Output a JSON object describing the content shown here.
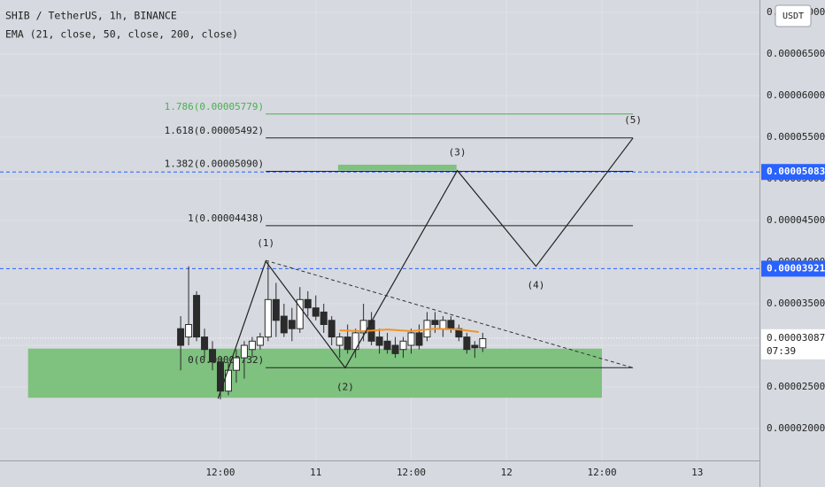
{
  "chart_data": {
    "type": "candlestick",
    "title": "SHIB / TetherUS, 1h, BINANCE",
    "subtitle": "EMA (21, close, 50, close, 200, close)",
    "currency": "USDT",
    "xlim": [
      -15.73,
      79.82
    ],
    "ylim": [
      1.617e-05,
      7.149e-05
    ],
    "xticks": [
      {
        "value": 12,
        "label": "12:00"
      },
      {
        "value": 24,
        "label": "11"
      },
      {
        "value": 36,
        "label": "12:00"
      },
      {
        "value": 48,
        "label": "12"
      },
      {
        "value": 60,
        "label": "12:00"
      },
      {
        "value": 72,
        "label": "13"
      }
    ],
    "yticks": [
      {
        "value": 2e-05,
        "label": "0.00002000"
      },
      {
        "value": 2.5e-05,
        "label": "0.00002500"
      },
      {
        "value": 3e-05,
        "label": "0.00003000"
      },
      {
        "value": 3.5e-05,
        "label": "0.00003500"
      },
      {
        "value": 4e-05,
        "label": "0.00004000"
      },
      {
        "value": 4.5e-05,
        "label": "0.00004500"
      },
      {
        "value": 5e-05,
        "label": "0.00005000"
      },
      {
        "value": 5.5e-05,
        "label": "0.00005500"
      },
      {
        "value": 6e-05,
        "label": "0.00006000"
      },
      {
        "value": 6.5e-05,
        "label": "0.00006500"
      },
      {
        "value": 7e-05,
        "label": "0.00007000"
      }
    ],
    "grid": true,
    "up_color": "#ffffff",
    "down_color": "#2b2b2b",
    "x": [
      7,
      8,
      9,
      10,
      11,
      12,
      13,
      14,
      15,
      16,
      17,
      18,
      19,
      20,
      21,
      22,
      23,
      24,
      25,
      26,
      27,
      28,
      29,
      30,
      31,
      32,
      33,
      34,
      35,
      36,
      37,
      38,
      39,
      40,
      41,
      42,
      43,
      44,
      45
    ],
    "open": [
      3.2e-05,
      3.1e-05,
      3.6e-05,
      3.1e-05,
      2.95e-05,
      2.8e-05,
      2.45e-05,
      2.7e-05,
      2.85e-05,
      2.95e-05,
      3e-05,
      3.1e-05,
      3.55e-05,
      3.35e-05,
      3.3e-05,
      3.2e-05,
      3.55e-05,
      3.45e-05,
      3.4e-05,
      3.3e-05,
      3e-05,
      3.1e-05,
      2.95e-05,
      3.15e-05,
      3.3e-05,
      3.1e-05,
      3.05e-05,
      3e-05,
      2.95e-05,
      3e-05,
      3.15e-05,
      3.1e-05,
      3.3e-05,
      3.2e-05,
      3.3e-05,
      3.2e-05,
      3.1e-05,
      3e-05,
      2.97e-05
    ],
    "high": [
      3.35e-05,
      3.95e-05,
      3.65e-05,
      3.2e-05,
      3.05e-05,
      2.85e-05,
      2.8e-05,
      2.95e-05,
      3.05e-05,
      3.1e-05,
      3.15e-05,
      4e-05,
      3.75e-05,
      3.5e-05,
      3.45e-05,
      3.7e-05,
      3.65e-05,
      3.6e-05,
      3.5e-05,
      3.35e-05,
      3.15e-05,
      3.25e-05,
      3.2e-05,
      3.5e-05,
      3.4e-05,
      3.2e-05,
      3.15e-05,
      3.1e-05,
      3.1e-05,
      3.2e-05,
      3.25e-05,
      3.4e-05,
      3.4e-05,
      3.35e-05,
      3.35e-05,
      3.25e-05,
      3.15e-05,
      3.05e-05,
      3.15e-05
    ],
    "low": [
      2.7e-05,
      3e-05,
      3.05e-05,
      2.85e-05,
      2.7e-05,
      2.35e-05,
      2.4e-05,
      2.55e-05,
      2.6e-05,
      2.85e-05,
      2.95e-05,
      3.05e-05,
      3.1e-05,
      3.1e-05,
      3.05e-05,
      3.15e-05,
      3.35e-05,
      3.3e-05,
      3.15e-05,
      3e-05,
      2.85e-05,
      2.9e-05,
      2.85e-05,
      3.05e-05,
      3e-05,
      2.9e-05,
      2.9e-05,
      2.85e-05,
      2.85e-05,
      2.9e-05,
      2.95e-05,
      3.05e-05,
      3.15e-05,
      3.1e-05,
      3.15e-05,
      3.05e-05,
      2.9e-05,
      2.85e-05,
      2.92e-05
    ],
    "close": [
      3e-05,
      3.25e-05,
      3.1e-05,
      2.95e-05,
      2.8e-05,
      2.45e-05,
      2.7e-05,
      2.85e-05,
      3e-05,
      3.05e-05,
      3.1e-05,
      3.55e-05,
      3.3e-05,
      3.15e-05,
      3.2e-05,
      3.55e-05,
      3.45e-05,
      3.35e-05,
      3.25e-05,
      3.1e-05,
      3.1e-05,
      2.95e-05,
      3.15e-05,
      3.3e-05,
      3.05e-05,
      3e-05,
      2.95e-05,
      2.9e-05,
      3.05e-05,
      3.15e-05,
      3e-05,
      3.3e-05,
      3.25e-05,
      3.3e-05,
      3.2e-05,
      3.1e-05,
      2.95e-05,
      2.97e-05,
      3.08e-05
    ],
    "ema": {
      "color": "#f0932b",
      "x": [
        27,
        30,
        33,
        36,
        39,
        42,
        44.5
      ],
      "values": [
        3.18e-05,
        3.17e-05,
        3.19e-05,
        3.17e-05,
        3.2e-05,
        3.19e-05,
        3.16e-05
      ]
    },
    "zones": [
      {
        "color": "#7fc17f",
        "x": [
          -12.2,
          60
        ],
        "y": [
          2.37e-05,
          2.96e-05
        ]
      },
      {
        "color": "#7fc17f",
        "x": [
          26.8,
          41.7
        ],
        "y": [
          5.1e-05,
          5.17e-05
        ]
      }
    ],
    "fib": {
      "x": [
        17.7,
        63.9
      ],
      "levels": [
        {
          "label": "1.786(0.00005779)",
          "value": 5.779e-05,
          "color": "#4caf50"
        },
        {
          "label": "1.618(0.00005492)",
          "value": 5.492e-05,
          "color": "#222222"
        },
        {
          "label": "1.382(0.00005090)",
          "value": 5.09e-05,
          "color": "#222222"
        },
        {
          "label": "1(0.00004438)",
          "value": 4.438e-05,
          "color": "#222222"
        },
        {
          "label": "0(0.00002732)",
          "value": 2.732e-05,
          "color": "#222222"
        }
      ]
    },
    "waves": {
      "x": [
        11.7,
        17.7,
        27.7,
        41.8,
        51.7,
        63.9
      ],
      "y": [
        2.36e-05,
        4.01e-05,
        2.73e-05,
        5.1e-05,
        3.95e-05,
        5.49e-05
      ],
      "labels": [
        null,
        "(1)",
        "(2)",
        "(3)",
        "(4)",
        "(5)"
      ]
    },
    "trendline": {
      "x": [
        17.7,
        63.9
      ],
      "y": [
        4.02e-05,
        2.73e-05
      ]
    },
    "price_lines": [
      {
        "value": 5.083e-05,
        "label": "0.00005083",
        "color": "#2962ff"
      },
      {
        "value": 3.921e-05,
        "label": "0.00003921",
        "color": "#2962ff"
      }
    ],
    "last_price": {
      "value": 3.087e-05,
      "label": "0.00003087",
      "countdown": "07:39"
    }
  }
}
